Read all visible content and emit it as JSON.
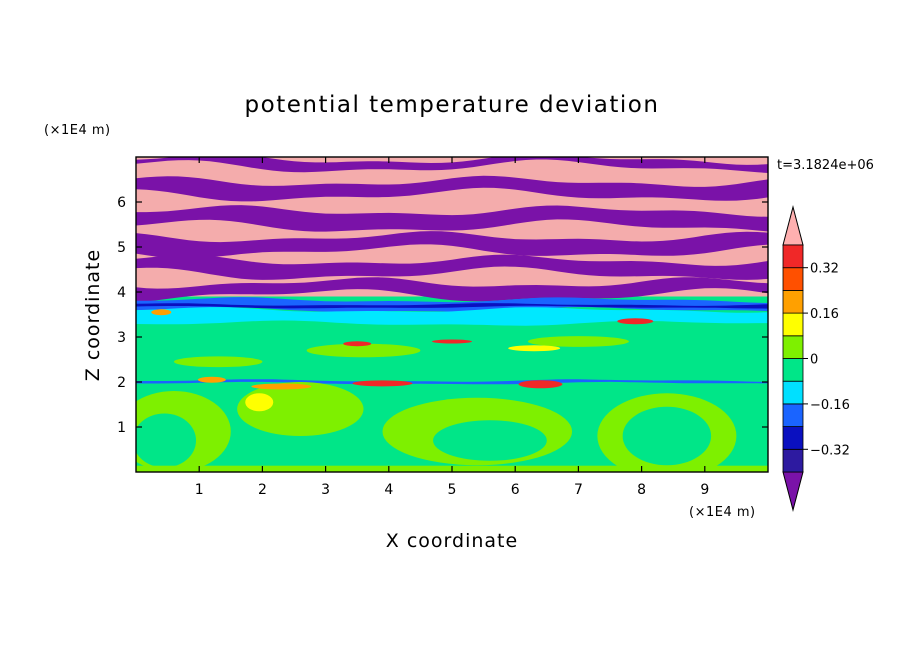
{
  "chart_data": {
    "type": "heatmap",
    "title": "potential temperature deviation",
    "xlabel": "X coordinate",
    "ylabel": "Z coordinate",
    "x_unit": "(×1E4 m)",
    "y_unit": "(×1E4 m)",
    "time_label": "t=3.1824e+06",
    "xlim": [
      0,
      10
    ],
    "ylim": [
      0,
      7
    ],
    "x_ticks": [
      "1",
      "2",
      "3",
      "4",
      "5",
      "6",
      "7",
      "8",
      "9"
    ],
    "y_ticks": [
      "1",
      "2",
      "3",
      "4",
      "5",
      "6"
    ],
    "colorbar": {
      "tick_labels": [
        "0.32",
        "0.16",
        "0",
        "−0.16",
        "−0.32"
      ],
      "tick_values": [
        0.32,
        0.16,
        0,
        -0.16,
        -0.32
      ],
      "level_colors": [
        "#7a12a8",
        "#2d1aa0",
        "#0a10c0",
        "#1a64ff",
        "#00e0ff",
        "#00e688",
        "#7ef000",
        "#ffff00",
        "#ffa000",
        "#ff5000",
        "#f02828",
        "#ffb0b0"
      ],
      "extend": "both"
    },
    "field_colors": {
      "upper_pink": "#f4acac",
      "upper_purple": "#7a12a8",
      "mid_cyan": "#00e8ff",
      "mid_blue": "#1a64ff",
      "dark_blue": "#0a10c0",
      "lower_green": "#00e688",
      "light_green": "#7ef000",
      "yellow": "#ffff00",
      "orange": "#ffa000",
      "red": "#f02828"
    }
  }
}
